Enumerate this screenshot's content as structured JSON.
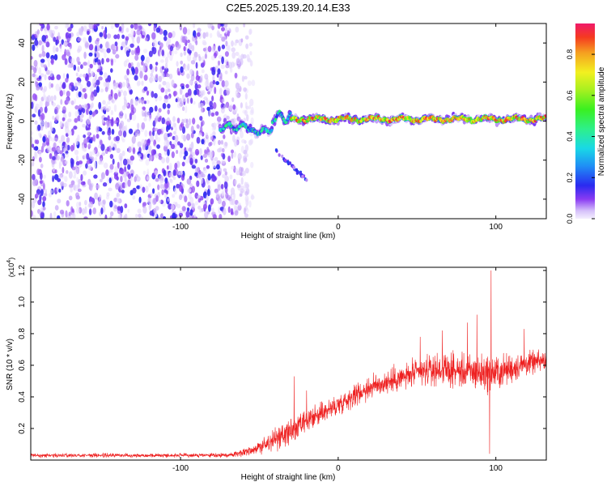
{
  "figure": {
    "title": "C2E5.2025.139.20.14.E33"
  },
  "chart_data": [
    {
      "type": "heatmap",
      "title": "",
      "xlabel": "Height of straight line (km)",
      "ylabel": "Frequency (Hz)",
      "xlim": [
        -195,
        132
      ],
      "ylim": [
        -50,
        50
      ],
      "xticks": [
        -100,
        0,
        100
      ],
      "yticks": [
        -40,
        -20,
        0,
        20,
        40
      ],
      "colorbar": {
        "label": "Normalized spectral amplitude",
        "range": [
          0.0,
          0.95
        ],
        "ticks": [
          0.0,
          0.2,
          0.4,
          0.6,
          0.8
        ],
        "colormap": "rainbow (violet-blue-cyan-green-yellow-red)"
      },
      "features": [
        {
          "name": "noise",
          "x_range": [
            -195,
            -60
          ],
          "freq_range": [
            -50,
            50
          ],
          "amplitude": [
            0.0,
            0.15
          ]
        },
        {
          "name": "emerging line",
          "x_range": [
            -75,
            -30
          ],
          "freq_center": -4,
          "amplitude": [
            0.15,
            0.5
          ]
        },
        {
          "name": "stable line",
          "x_range": [
            -30,
            132
          ],
          "freq_center": 1,
          "amplitude": [
            0.5,
            0.95
          ]
        },
        {
          "name": "secondary branch",
          "x_range": [
            -40,
            -20
          ],
          "freq_range": [
            -30,
            -15
          ],
          "amplitude": [
            0.05,
            0.2
          ]
        }
      ]
    },
    {
      "type": "line",
      "title": "",
      "xlabel": "Height of straight line (km)",
      "ylabel": "SNR (10 * v/v)",
      "yscale_label": "(x10",
      "yscale_exp": "4",
      "yscale_close": ")",
      "xlim": [
        -195,
        132
      ],
      "ylim": [
        0.0,
        1.22
      ],
      "xticks": [
        -100,
        0,
        100
      ],
      "yticks": [
        0.2,
        0.4,
        0.6,
        0.8,
        1.0,
        1.2
      ],
      "series": [
        {
          "color": "#ee2020",
          "envelope": {
            "x": [
              -195,
              -120,
              -70,
              -60,
              -50,
              -40,
              -30,
              -20,
              -10,
              0,
              10,
              20,
              30,
              40,
              50,
              60,
              70,
              80,
              90,
              100,
              110,
              120,
              132
            ],
            "mean": [
              0.03,
              0.03,
              0.03,
              0.05,
              0.08,
              0.13,
              0.18,
              0.24,
              0.3,
              0.35,
              0.41,
              0.46,
              0.49,
              0.52,
              0.55,
              0.57,
              0.57,
              0.56,
              0.55,
              0.55,
              0.58,
              0.61,
              0.63
            ],
            "amp": [
              0.02,
              0.02,
              0.02,
              0.04,
              0.07,
              0.11,
              0.13,
              0.12,
              0.11,
              0.11,
              0.11,
              0.12,
              0.12,
              0.13,
              0.14,
              0.15,
              0.15,
              0.17,
              0.19,
              0.18,
              0.15,
              0.12,
              0.1
            ]
          },
          "peaks": [
            {
              "x": -28,
              "y": 0.53
            },
            {
              "x": -20,
              "y": 0.44
            },
            {
              "x": 52,
              "y": 0.78
            },
            {
              "x": 66,
              "y": 0.82
            },
            {
              "x": 82,
              "y": 0.87
            },
            {
              "x": 88,
              "y": 0.92
            },
            {
              "x": 97,
              "y": 1.2
            },
            {
              "x": 96,
              "y": 0.04
            },
            {
              "x": 118,
              "y": 0.83
            }
          ]
        }
      ]
    }
  ]
}
